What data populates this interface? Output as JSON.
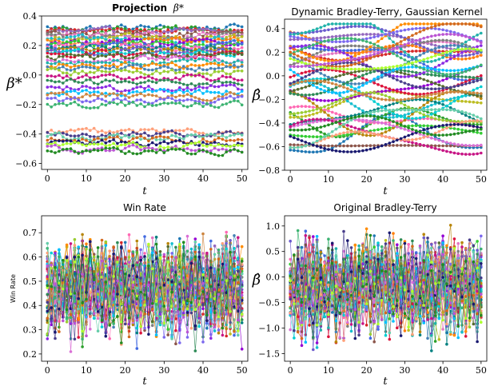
{
  "chart_data": [
    {
      "type": "line",
      "title": "Projection β*",
      "title_main": "Projection",
      "title_symbol": "β*",
      "xlabel": "t",
      "ylabel": "β*",
      "xlim": [
        -1.5,
        51.5
      ],
      "ylim": [
        -0.64,
        0.4
      ],
      "xticks": [
        "0",
        "10",
        "20",
        "30",
        "40",
        "50"
      ],
      "yticks": [
        "0.4",
        "0.2",
        "0.0",
        "−0.2",
        "−0.4",
        "−0.6"
      ],
      "x": [
        0,
        50
      ],
      "n_series": 40,
      "series_levels": [
        0.32,
        0.31,
        0.3,
        0.29,
        0.28,
        0.27,
        0.26,
        0.25,
        0.24,
        0.23,
        0.22,
        0.21,
        0.2,
        0.19,
        0.18,
        0.17,
        0.16,
        0.15,
        0.14,
        0.13,
        0.11,
        0.09,
        0.07,
        0.05,
        0.02,
        -0.01,
        -0.05,
        -0.09,
        -0.12,
        -0.14,
        -0.17,
        -0.2,
        -0.38,
        -0.4,
        -0.42,
        -0.44,
        -0.46,
        -0.48,
        -0.5,
        -0.52
      ]
    },
    {
      "type": "line",
      "title": "Dynamic Bradley-Terry, Gaussian Kernel",
      "xlabel": "t",
      "ylabel": "β̂",
      "xlim": [
        -1.5,
        51.5
      ],
      "ylim": [
        -0.8,
        0.48
      ],
      "xticks": [
        "0",
        "10",
        "20",
        "30",
        "40",
        "50"
      ],
      "yticks": [
        "0.4",
        "0.2",
        "0.0",
        "−0.2",
        "−0.4",
        "−0.6",
        "−0.8"
      ],
      "x": [
        0,
        50
      ],
      "n_series": 40,
      "series_range": [
        -0.72,
        0.44
      ]
    },
    {
      "type": "line",
      "title": "Win Rate",
      "xlabel": "t",
      "ylabel": "Win Rate",
      "xlim": [
        -1.5,
        51.5
      ],
      "ylim": [
        0.17,
        0.77
      ],
      "xticks": [
        "0",
        "10",
        "20",
        "30",
        "40",
        "50"
      ],
      "yticks": [
        "0.7",
        "0.6",
        "0.5",
        "0.4",
        "0.3",
        "0.2"
      ],
      "x": [
        0,
        50
      ],
      "n_series": 40,
      "series_range": [
        0.19,
        0.75
      ]
    },
    {
      "type": "line",
      "title": "Original Bradley-Terry",
      "xlabel": "t",
      "ylabel": "β̂",
      "xlim": [
        -1.5,
        51.5
      ],
      "ylim": [
        -1.65,
        1.2
      ],
      "xticks": [
        "0",
        "10",
        "20",
        "30",
        "40",
        "50"
      ],
      "yticks": [
        "1.0",
        "0.5",
        "0.0",
        "−0.5",
        "−1.0",
        "−1.5"
      ],
      "x": [
        0,
        50
      ],
      "n_series": 40,
      "series_range": [
        -1.5,
        1.1
      ]
    }
  ],
  "colors": [
    "#1f77b4",
    "#2ca02c",
    "#d62728",
    "#9467bd",
    "#8c564b",
    "#e377c2",
    "#7f7f7f",
    "#bcbd22",
    "#17becf",
    "#ff7f0e",
    "#9400d3",
    "#32cd32",
    "#4169e1",
    "#ff69b4",
    "#008080",
    "#b8860b",
    "#6a5acd",
    "#00ced1",
    "#dc143c",
    "#556b2f",
    "#da70d6",
    "#20b2aa",
    "#ff8c00",
    "#4682b4",
    "#9acd32",
    "#c71585",
    "#2e8b57",
    "#8a2be2",
    "#00bfff",
    "#cd853f",
    "#7b68ee",
    "#3cb371",
    "#ffa07a",
    "#483d8b",
    "#66cdaa",
    "#d2691e",
    "#191970",
    "#adff2f",
    "#ba55d3",
    "#228b22"
  ]
}
